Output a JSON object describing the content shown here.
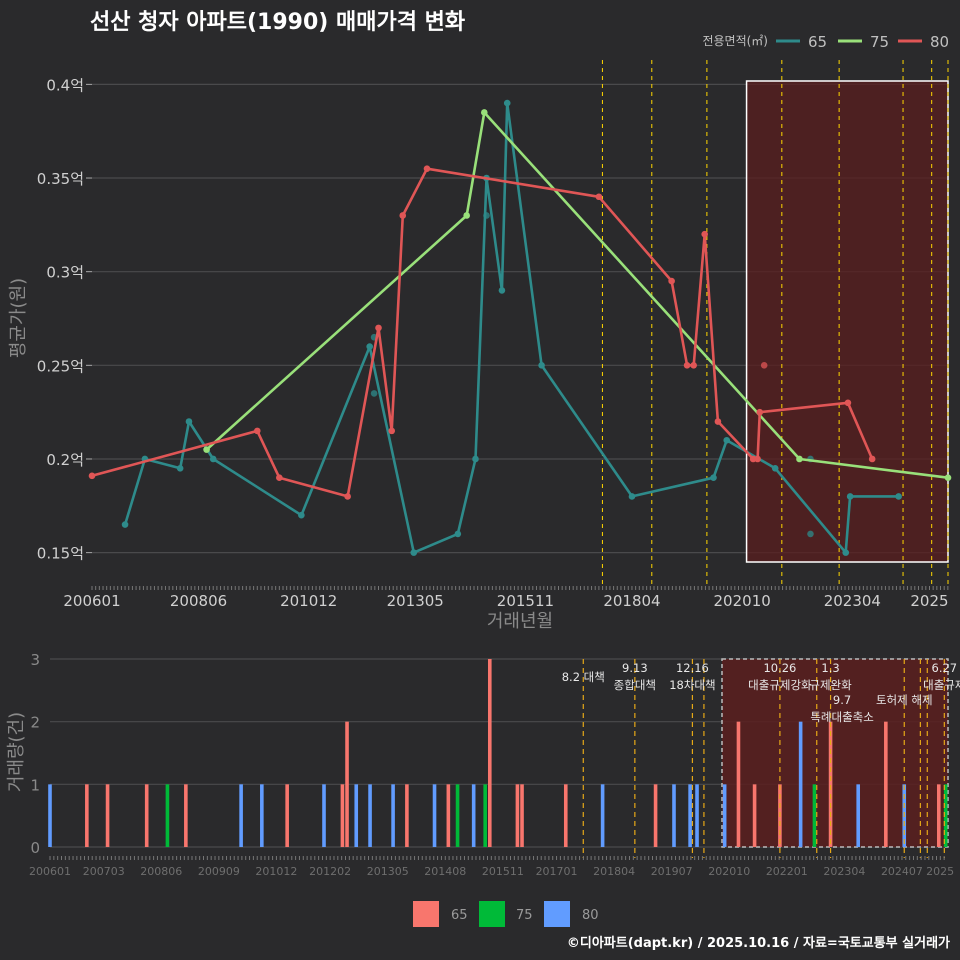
{
  "title": "선산 청자 아파트(1990) 매매가격 변화",
  "footer": "©디아파트(dapt.kr) / 2025.10.16 / 자료=국토교통부 실거래가",
  "colors": {
    "bg": "#2a2a2c",
    "s65": "#2e8b8b",
    "s75": "#99e07a",
    "s80": "#e05656",
    "bar65": "#f8766d",
    "bar75": "#00ba38",
    "bar80": "#619cff",
    "policy": "#ffd700",
    "highlight": "#5a1e1e"
  },
  "chart_data": [
    {
      "type": "line",
      "title": "선산 청자 아파트(1990) 매매가격 변화",
      "xlabel": "거래년월",
      "ylabel": "평균가(원)",
      "legend_title": "전용면적(㎡)",
      "legend_position": "top-right",
      "x_tick_labels": [
        "200601",
        "200806",
        "201012",
        "201305",
        "201511",
        "201804",
        "202010",
        "202304",
        "2025"
      ],
      "x_ticks": [
        2006.0,
        2008.4167,
        2010.9167,
        2013.3333,
        2015.8333,
        2018.25,
        2020.75,
        2023.25,
        2025.0
      ],
      "xlim": [
        2006.0,
        2025.42
      ],
      "y_tick_labels": [
        "0.15억",
        "0.2억",
        "0.25억",
        "0.3억",
        "0.35억",
        "0.4억"
      ],
      "y_ticks": [
        0.15,
        0.2,
        0.25,
        0.3,
        0.35,
        0.4
      ],
      "ylim": [
        0.145,
        0.405
      ],
      "policy_lines": [
        2017.58,
        2018.7,
        2019.95,
        2021.65,
        2022.95,
        2024.4,
        2025.05,
        2025.42
      ],
      "highlight_range": [
        2020.85,
        2025.85
      ],
      "series": [
        {
          "name": "65",
          "points": [
            [
              2006.75,
              0.165
            ],
            [
              2007.2,
              0.2
            ],
            [
              2008.0,
              0.195
            ],
            [
              2008.2,
              0.22
            ],
            [
              2008.75,
              0.2
            ],
            [
              2010.75,
              0.17
            ],
            [
              2012.3,
              0.26
            ],
            [
              2013.3,
              0.15
            ],
            [
              2014.3,
              0.16
            ],
            [
              2014.7,
              0.2
            ],
            [
              2014.95,
              0.35
            ],
            [
              2015.3,
              0.29
            ],
            [
              2015.42,
              0.39
            ],
            [
              2016.2,
              0.25
            ],
            [
              2018.25,
              0.18
            ],
            [
              2020.1,
              0.19
            ],
            [
              2020.4,
              0.21
            ],
            [
              2021.5,
              0.195
            ],
            [
              2023.1,
              0.15
            ],
            [
              2023.2,
              0.18
            ],
            [
              2024.3,
              0.18
            ]
          ],
          "extra_points": [
            [
              2012.4,
              0.265
            ],
            [
              2012.4,
              0.235
            ],
            [
              2014.95,
              0.33
            ],
            [
              2022.3,
              0.2
            ],
            [
              2022.3,
              0.16
            ]
          ]
        },
        {
          "name": "75",
          "points": [
            [
              2008.6,
              0.205
            ],
            [
              2014.5,
              0.33
            ],
            [
              2014.9,
              0.385
            ],
            [
              2022.05,
              0.2
            ],
            [
              2025.42,
              0.19
            ]
          ]
        },
        {
          "name": "80",
          "points": [
            [
              2006.0,
              0.191
            ],
            [
              2009.75,
              0.215
            ],
            [
              2010.25,
              0.19
            ],
            [
              2011.8,
              0.18
            ],
            [
              2012.5,
              0.27
            ],
            [
              2012.8,
              0.215
            ],
            [
              2013.05,
              0.33
            ],
            [
              2013.6,
              0.355
            ],
            [
              2017.5,
              0.34
            ],
            [
              2019.15,
              0.295
            ],
            [
              2019.5,
              0.25
            ],
            [
              2019.65,
              0.25
            ],
            [
              2019.9,
              0.32
            ],
            [
              2020.2,
              0.22
            ],
            [
              2021.0,
              0.2
            ],
            [
              2021.1,
              0.2
            ],
            [
              2021.15,
              0.225
            ],
            [
              2023.15,
              0.23
            ],
            [
              2023.7,
              0.2
            ]
          ],
          "extra_points": [
            [
              2021.25,
              0.25
            ]
          ]
        }
      ]
    },
    {
      "type": "bar",
      "ylabel": "거래량(건)",
      "legend_position": "bottom",
      "legend_entries": [
        "65",
        "75",
        "80"
      ],
      "x_tick_labels": [
        "200601",
        "200703",
        "200806",
        "200909",
        "201012",
        "201202",
        "201305",
        "201408",
        "201511",
        "201701",
        "201804",
        "201907",
        "202010",
        "202201",
        "202304",
        "202407",
        "2025"
      ],
      "x_ticks": [
        2006.0,
        2007.1667,
        2008.4167,
        2009.6667,
        2010.9167,
        2012.0833,
        2013.3333,
        2014.5833,
        2015.8333,
        2017.0,
        2018.25,
        2019.5,
        2020.75,
        2022.0,
        2023.25,
        2024.5,
        2025.33
      ],
      "xlim": [
        2006.0,
        2025.5
      ],
      "y_tick_labels": [
        "0",
        "1",
        "2",
        "3"
      ],
      "y_ticks": [
        0,
        1,
        2,
        3
      ],
      "ylim": [
        0,
        3.1
      ],
      "highlight_range": [
        2020.9,
        2025.5
      ],
      "policy_lines": [
        2017.58,
        2018.7,
        2019.95,
        2020.2,
        2021.85,
        2022.65,
        2022.95,
        2024.55,
        2024.9,
        2025.05,
        2025.42
      ],
      "policy_labels": [
        {
          "x": 2017.58,
          "lines": [
            "8.2 대책"
          ],
          "level": 2
        },
        {
          "x": 2018.7,
          "lines": [
            "9.13",
            "종합대책"
          ],
          "level": 1
        },
        {
          "x": 2019.95,
          "lines": [
            "12.16",
            "18차대책"
          ],
          "level": 1
        },
        {
          "x": 2021.85,
          "lines": [
            "10.26",
            "대출규제강화"
          ],
          "level": 1
        },
        {
          "x": 2022.95,
          "lines": [
            "1.3",
            "규제완화"
          ],
          "level": 1
        },
        {
          "x": 2023.2,
          "lines": [
            "9.7",
            "특례대출축소"
          ],
          "level": 3
        },
        {
          "x": 2024.55,
          "lines": [
            "토허제 해제"
          ],
          "level": 3
        },
        {
          "x": 2025.42,
          "lines": [
            "6.27",
            "대출규제"
          ],
          "level": 1
        }
      ],
      "bars": [
        {
          "x": 2006.0,
          "series": "80",
          "value": 1
        },
        {
          "x": 2006.8,
          "series": "65",
          "value": 1
        },
        {
          "x": 2007.25,
          "series": "65",
          "value": 1
        },
        {
          "x": 2008.1,
          "series": "65",
          "value": 1
        },
        {
          "x": 2008.55,
          "series": "75",
          "value": 1
        },
        {
          "x": 2008.95,
          "series": "65",
          "value": 1
        },
        {
          "x": 2010.15,
          "series": "80",
          "value": 1
        },
        {
          "x": 2010.6,
          "series": "80",
          "value": 1
        },
        {
          "x": 2011.15,
          "series": "65",
          "value": 1
        },
        {
          "x": 2011.95,
          "series": "80",
          "value": 1
        },
        {
          "x": 2012.35,
          "series": "65",
          "value": 1
        },
        {
          "x": 2012.45,
          "series": "65",
          "value": 2
        },
        {
          "x": 2012.65,
          "series": "80",
          "value": 1
        },
        {
          "x": 2012.95,
          "series": "80",
          "value": 1
        },
        {
          "x": 2013.45,
          "series": "80",
          "value": 1
        },
        {
          "x": 2013.75,
          "series": "65",
          "value": 1
        },
        {
          "x": 2014.35,
          "series": "80",
          "value": 1
        },
        {
          "x": 2014.65,
          "series": "65",
          "value": 1
        },
        {
          "x": 2014.85,
          "series": "75",
          "value": 1
        },
        {
          "x": 2015.2,
          "series": "80",
          "value": 1
        },
        {
          "x": 2015.45,
          "series": "75",
          "value": 1
        },
        {
          "x": 2015.55,
          "series": "65",
          "value": 3
        },
        {
          "x": 2016.15,
          "series": "65",
          "value": 1
        },
        {
          "x": 2016.25,
          "series": "65",
          "value": 1
        },
        {
          "x": 2017.2,
          "series": "65",
          "value": 1
        },
        {
          "x": 2018.0,
          "series": "80",
          "value": 1
        },
        {
          "x": 2019.15,
          "series": "65",
          "value": 1
        },
        {
          "x": 2019.55,
          "series": "80",
          "value": 1
        },
        {
          "x": 2019.9,
          "series": "80",
          "value": 1
        },
        {
          "x": 2020.05,
          "series": "80",
          "value": 1
        },
        {
          "x": 2020.65,
          "series": "80",
          "value": 1
        },
        {
          "x": 2020.95,
          "series": "65",
          "value": 2
        },
        {
          "x": 2021.3,
          "series": "65",
          "value": 1
        },
        {
          "x": 2021.85,
          "series": "65",
          "value": 1
        },
        {
          "x": 2022.3,
          "series": "80",
          "value": 2
        },
        {
          "x": 2022.6,
          "series": "75",
          "value": 1
        },
        {
          "x": 2022.95,
          "series": "65",
          "value": 2
        },
        {
          "x": 2023.55,
          "series": "80",
          "value": 1
        },
        {
          "x": 2024.15,
          "series": "65",
          "value": 2
        },
        {
          "x": 2024.55,
          "series": "80",
          "value": 1
        },
        {
          "x": 2025.3,
          "series": "65",
          "value": 1
        },
        {
          "x": 2025.45,
          "series": "75",
          "value": 1
        }
      ]
    }
  ]
}
